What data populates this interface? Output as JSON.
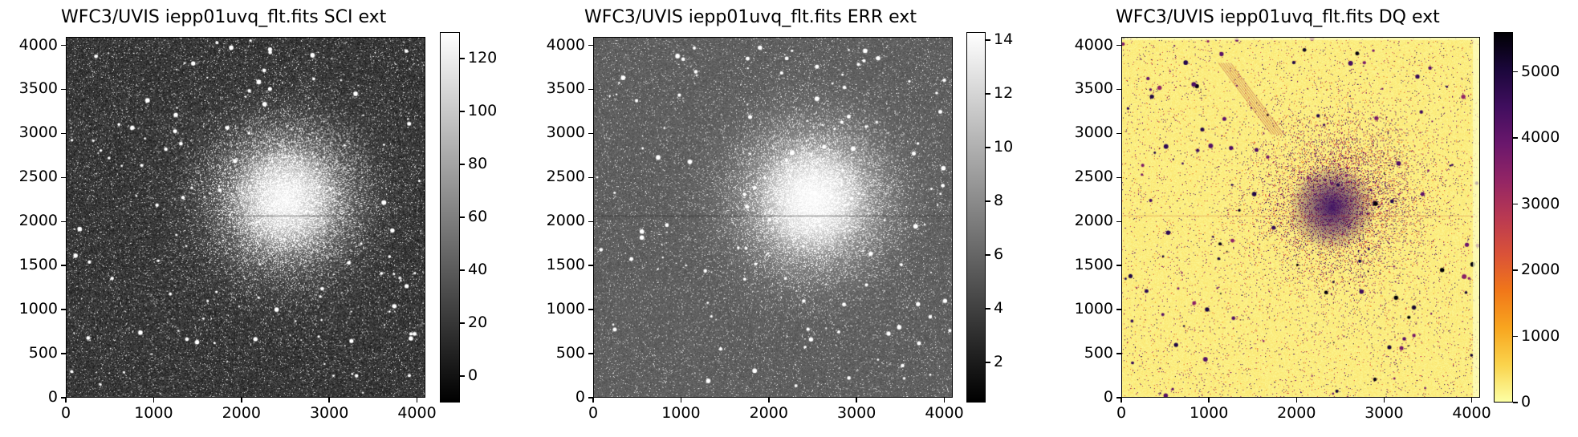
{
  "panels": [
    {
      "title": "WFC3/UVIS iepp01uvq_flt.fits SCI ext",
      "colormap": "gray",
      "x_ticks": [
        "0",
        "1000",
        "2000",
        "3000",
        "4000"
      ],
      "y_ticks": [
        "0",
        "500",
        "1000",
        "1500",
        "2000",
        "2500",
        "3000",
        "3500",
        "4000"
      ],
      "colorbar_ticks": [
        "0",
        "20",
        "40",
        "60",
        "80",
        "100",
        "120"
      ],
      "colorbar_range": [
        -10,
        130
      ]
    },
    {
      "title": "WFC3/UVIS iepp01uvq_flt.fits ERR ext",
      "colormap": "gray",
      "x_ticks": [
        "0",
        "1000",
        "2000",
        "3000",
        "4000"
      ],
      "y_ticks": [
        "0",
        "500",
        "1000",
        "1500",
        "2000",
        "2500",
        "3000",
        "3500",
        "4000"
      ],
      "colorbar_ticks": [
        "2",
        "4",
        "6",
        "8",
        "10",
        "12",
        "14"
      ],
      "colorbar_range": [
        0.5,
        14.3
      ]
    },
    {
      "title": "WFC3/UVIS iepp01uvq_flt.fits DQ ext",
      "colormap": "inferno_r",
      "x_ticks": [
        "0",
        "1000",
        "2000",
        "3000",
        "4000"
      ],
      "y_ticks": [
        "0",
        "500",
        "1000",
        "1500",
        "2000",
        "2500",
        "3000",
        "3500",
        "4000"
      ],
      "colorbar_ticks": [
        "0",
        "1000",
        "2000",
        "3000",
        "4000",
        "5000"
      ],
      "colorbar_range": [
        0,
        5600
      ]
    }
  ],
  "image_extent": [
    0,
    4096
  ]
}
